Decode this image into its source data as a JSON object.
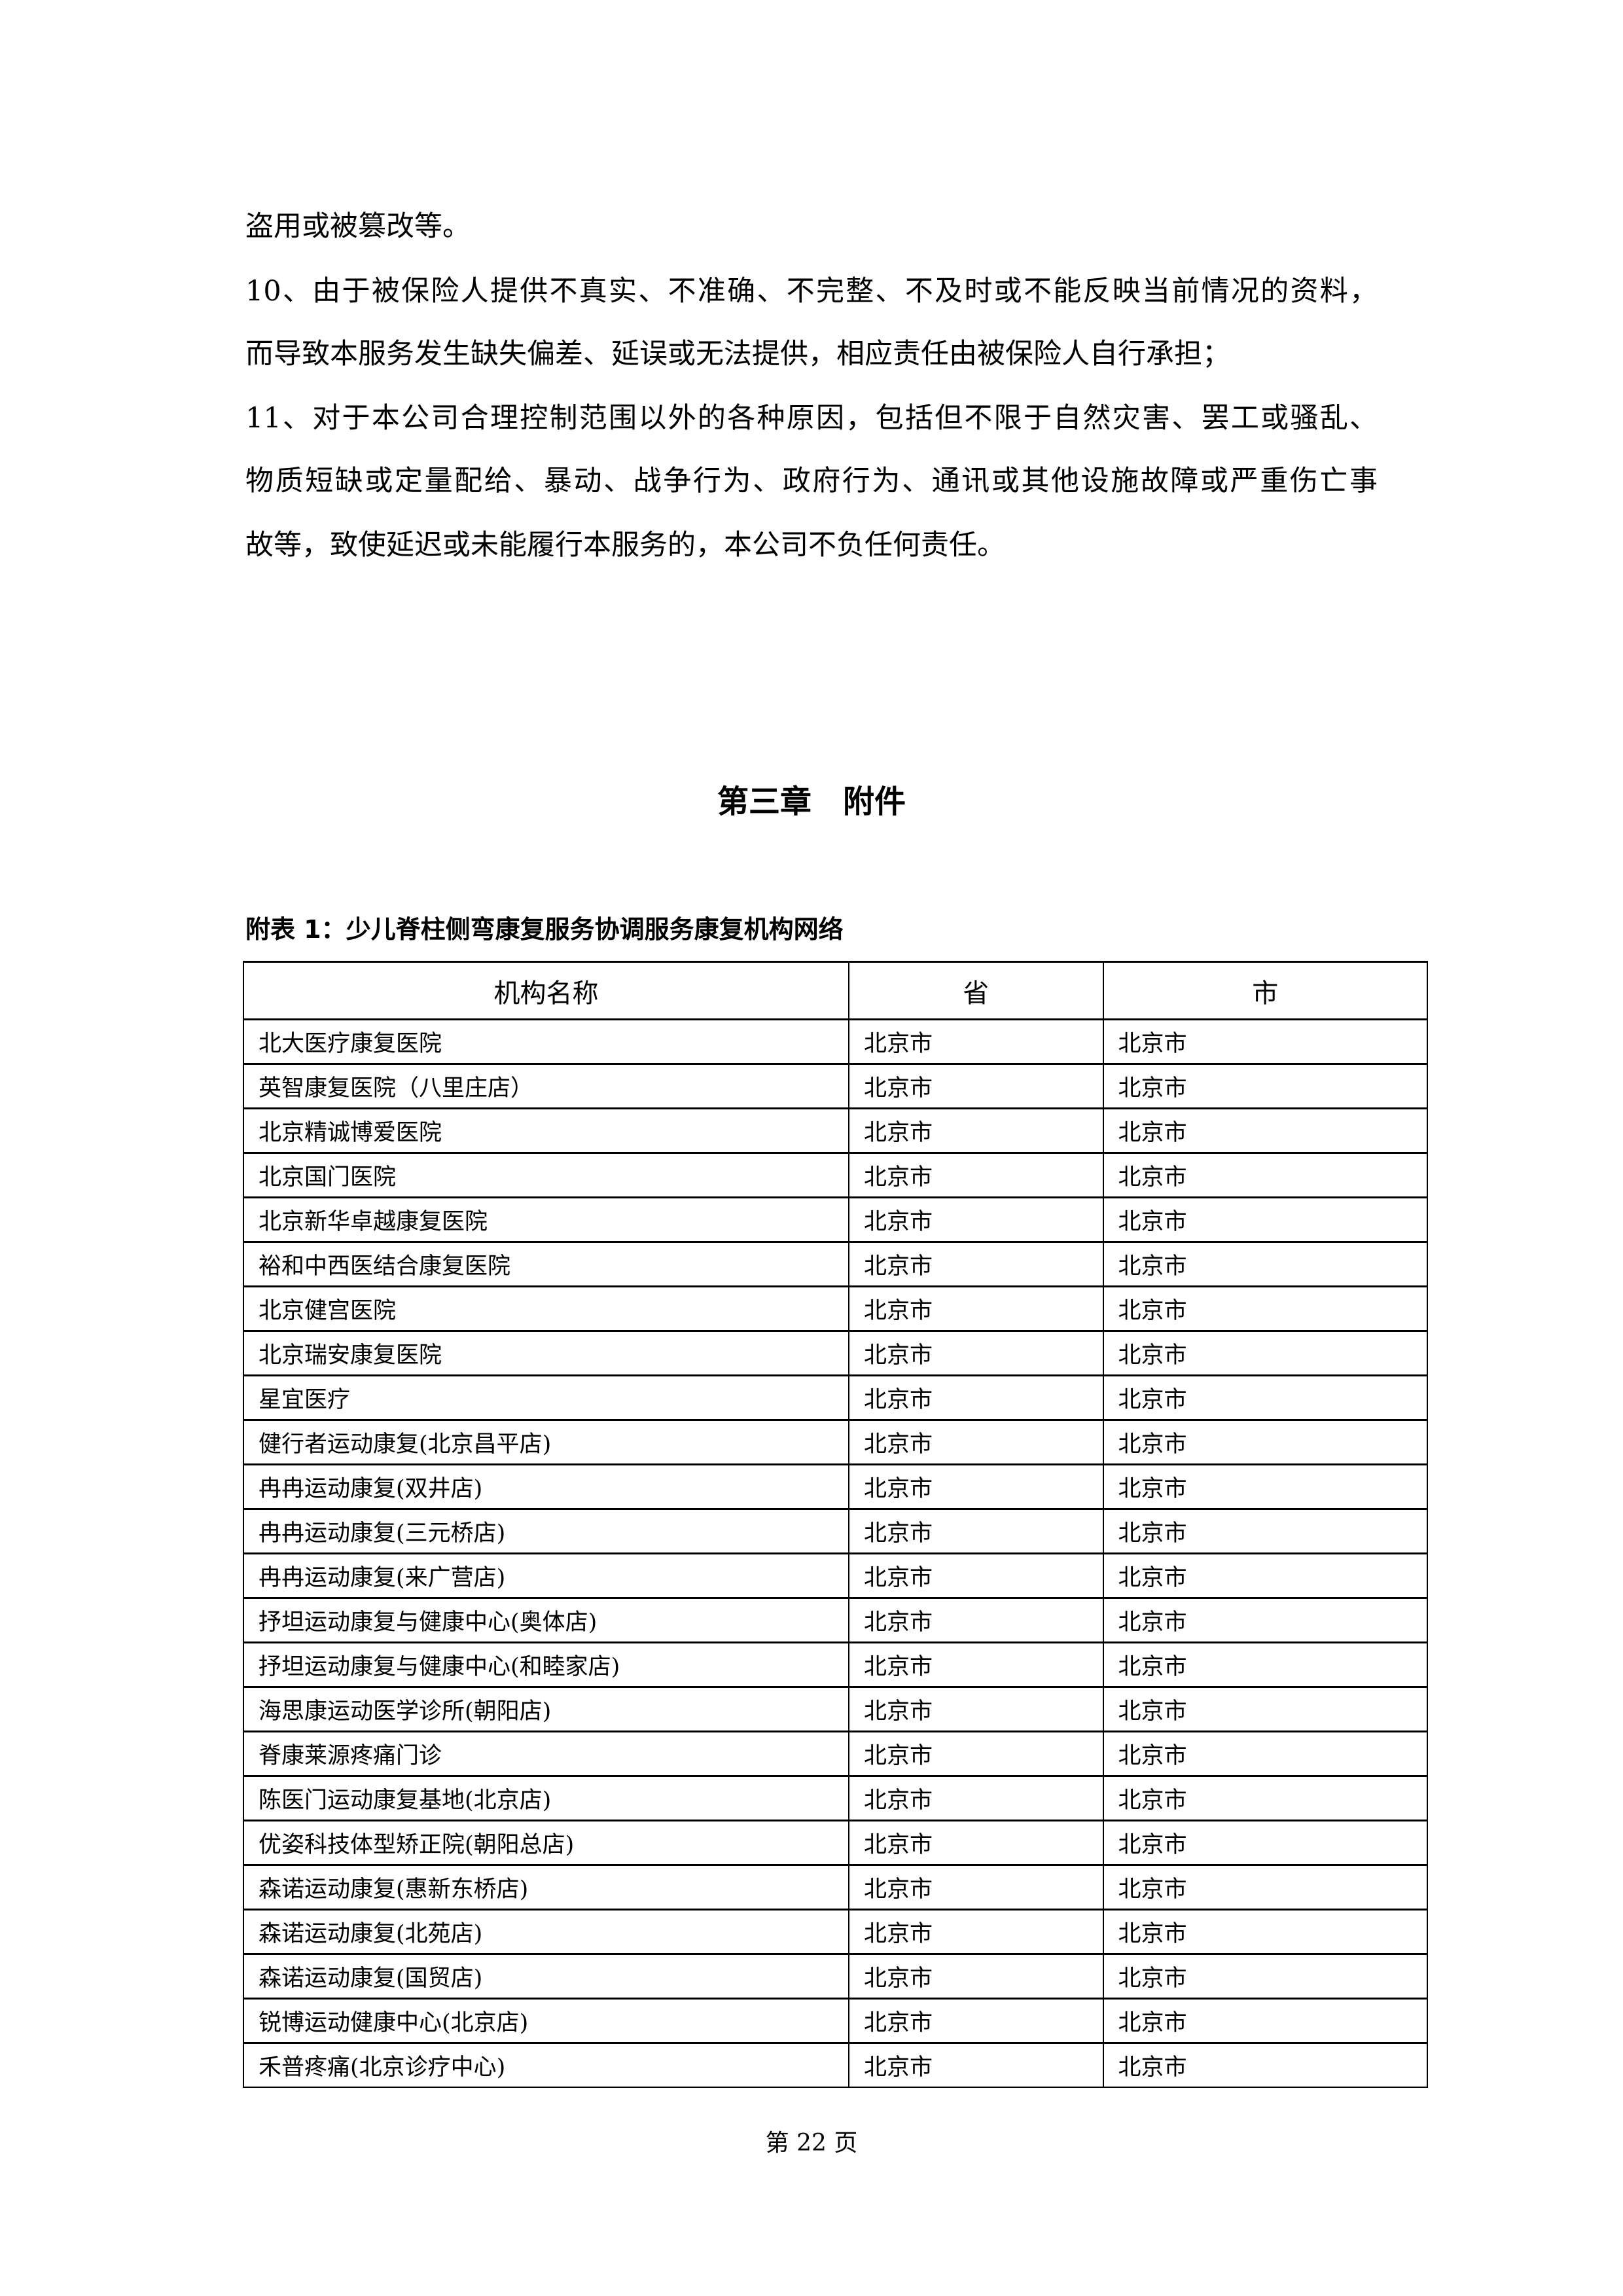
{
  "body_lines": [
    "盗用或被篡改等。",
    "10、由于被保险人提供不真实、不准确、不完整、不及时或不能反映当前情况的资料，",
    "而导致本服务发生缺失偏差、延误或无法提供，相应责任由被保险人自行承担；",
    "11、对于本公司合理控制范围以外的各种原因，包括但不限于自然灾害、罢工或骚乱、",
    "物质短缺或定量配给、暴动、战争行为、政府行为、通讯或其他设施故障或严重伤亡事",
    "故等，致使延迟或未能履行本服务的，本公司不负任何责任。"
  ],
  "heading": "第三章　附件",
  "table_caption": "附表 1：少儿脊柱侧弯康复服务协调服务康复机构网络",
  "table": {
    "headers": [
      "机构名称",
      "省",
      "市"
    ],
    "rows": [
      [
        "北大医疗康复医院",
        "北京市",
        "北京市"
      ],
      [
        "英智康复医院（八里庄店）",
        "北京市",
        "北京市"
      ],
      [
        "北京精诚博爱医院",
        "北京市",
        "北京市"
      ],
      [
        "北京国门医院",
        "北京市",
        "北京市"
      ],
      [
        "北京新华卓越康复医院",
        "北京市",
        "北京市"
      ],
      [
        "裕和中西医结合康复医院",
        "北京市",
        "北京市"
      ],
      [
        "北京健宫医院",
        "北京市",
        "北京市"
      ],
      [
        "北京瑞安康复医院",
        "北京市",
        "北京市"
      ],
      [
        "星宜医疗",
        "北京市",
        "北京市"
      ],
      [
        "健行者运动康复(北京昌平店)",
        "北京市",
        "北京市"
      ],
      [
        "冉冉运动康复(双井店)",
        "北京市",
        "北京市"
      ],
      [
        "冉冉运动康复(三元桥店)",
        "北京市",
        "北京市"
      ],
      [
        "冉冉运动康复(来广营店)",
        "北京市",
        "北京市"
      ],
      [
        "抒坦运动康复与健康中心(奥体店)",
        "北京市",
        "北京市"
      ],
      [
        "抒坦运动康复与健康中心(和睦家店)",
        "北京市",
        "北京市"
      ],
      [
        "海思康运动医学诊所(朝阳店)",
        "北京市",
        "北京市"
      ],
      [
        "脊康莱源疼痛门诊",
        "北京市",
        "北京市"
      ],
      [
        "陈医门运动康复基地(北京店)",
        "北京市",
        "北京市"
      ],
      [
        "优姿科技体型矫正院(朝阳总店)",
        "北京市",
        "北京市"
      ],
      [
        "森诺运动康复(惠新东桥店)",
        "北京市",
        "北京市"
      ],
      [
        "森诺运动康复(北苑店)",
        "北京市",
        "北京市"
      ],
      [
        "森诺运动康复(国贸店)",
        "北京市",
        "北京市"
      ],
      [
        "锐博运动健康中心(北京店)",
        "北京市",
        "北京市"
      ],
      [
        "禾普疼痛(北京诊疗中心)",
        "北京市",
        "北京市"
      ]
    ]
  },
  "footer": "第 22 页"
}
